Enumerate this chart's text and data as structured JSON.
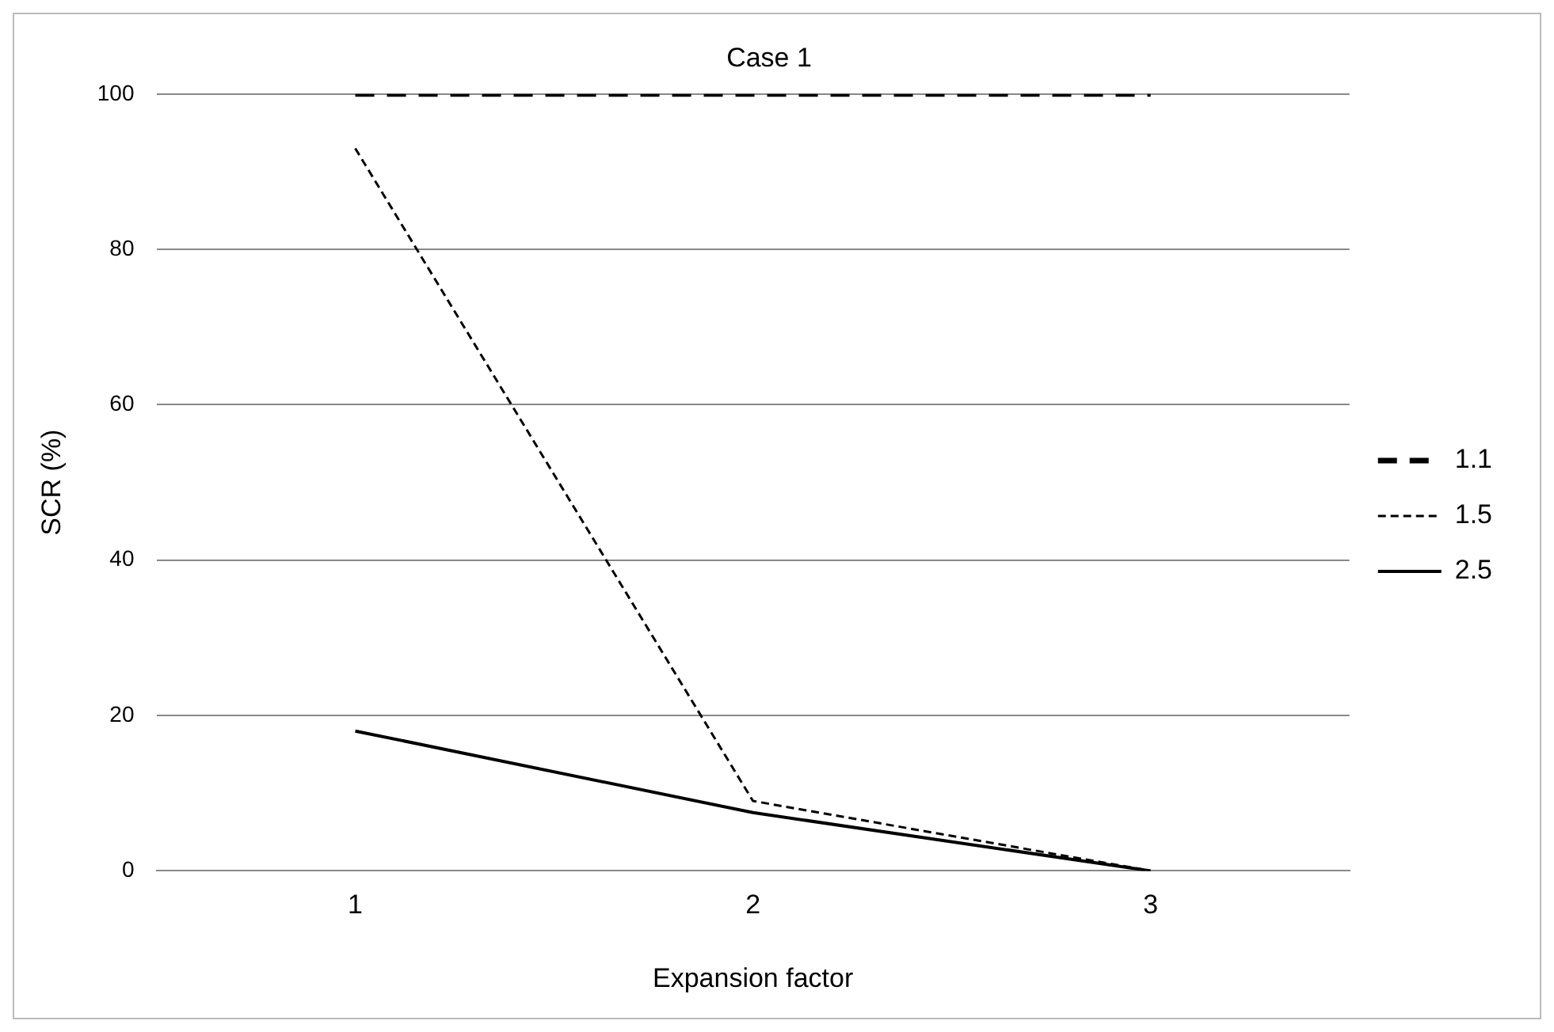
{
  "chart_data": {
    "type": "line",
    "title": "Case 1",
    "xlabel": "Expansion factor",
    "ylabel": "SCR (%)",
    "categories": [
      "1",
      "2",
      "3"
    ],
    "series": [
      {
        "name": "1.1",
        "color": "#000000",
        "line_style": "dashed",
        "values": [
          100,
          100,
          100
        ]
      },
      {
        "name": "1.5",
        "color": "#000000",
        "line_style": "dotted",
        "values": [
          93,
          9,
          0
        ]
      },
      {
        "name": "2.5",
        "color": "#000000",
        "line_style": "solid",
        "values": [
          18,
          7.5,
          0
        ]
      }
    ],
    "ylim": [
      0,
      100
    ],
    "yticks": [
      0,
      20,
      40,
      60,
      80,
      100
    ],
    "grid": "y",
    "legend": "right",
    "marker": "none"
  }
}
